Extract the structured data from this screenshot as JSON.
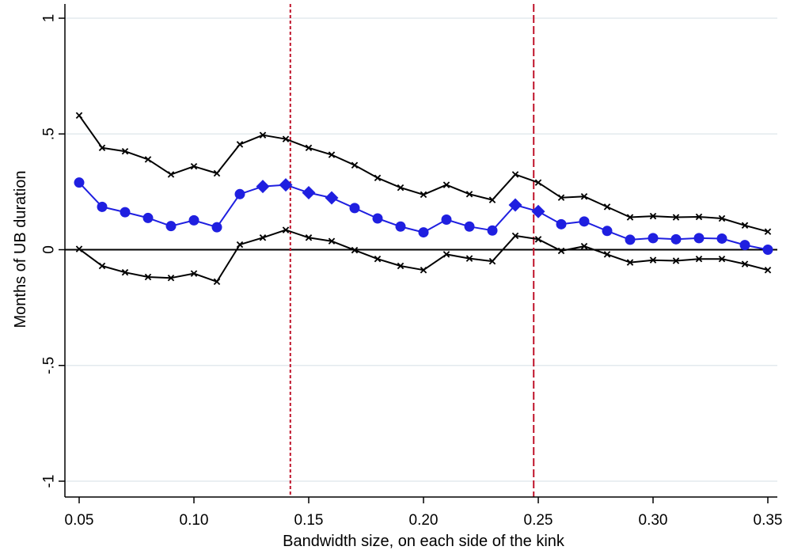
{
  "chart_data": {
    "type": "line",
    "title": "",
    "xlabel": "Bandwidth size, on each side of the kink",
    "ylabel": "Months of UB duration",
    "xlim": [
      0.05,
      0.35
    ],
    "ylim": [
      -1,
      1
    ],
    "x_ticks": [
      0.05,
      0.1,
      0.15,
      0.2,
      0.25,
      0.3,
      0.35
    ],
    "x_tick_labels": [
      "0.05",
      "0.10",
      "0.15",
      "0.20",
      "0.25",
      "0.30",
      "0.35"
    ],
    "y_ticks": [
      -1,
      -0.5,
      0,
      0.5,
      1
    ],
    "y_tick_labels": [
      "-1",
      "-.5",
      "0",
      ".5",
      "1"
    ],
    "grid": "horizontal",
    "reference_lines": {
      "horizontal": [
        {
          "y": 0,
          "color": "#000000"
        }
      ],
      "vertical": [
        {
          "x": 0.142,
          "color": "#c0142b",
          "style": "dotted"
        },
        {
          "x": 0.248,
          "color": "#c0142b",
          "style": "dashed"
        }
      ]
    },
    "x": [
      0.05,
      0.06,
      0.07,
      0.08,
      0.09,
      0.1,
      0.11,
      0.12,
      0.13,
      0.14,
      0.15,
      0.16,
      0.17,
      0.18,
      0.19,
      0.2,
      0.21,
      0.22,
      0.23,
      0.24,
      0.25,
      0.26,
      0.27,
      0.28,
      0.29,
      0.3,
      0.31,
      0.32,
      0.33,
      0.34,
      0.35
    ],
    "series": [
      {
        "role": "estimate",
        "color": "#1f1fe0",
        "values": [
          0.29,
          0.185,
          0.162,
          0.137,
          0.102,
          0.127,
          0.097,
          0.24,
          0.273,
          0.28,
          0.246,
          0.224,
          0.18,
          0.135,
          0.1,
          0.075,
          0.13,
          0.1,
          0.083,
          0.193,
          0.165,
          0.11,
          0.122,
          0.081,
          0.043,
          0.05,
          0.045,
          0.05,
          0.048,
          0.02,
          0.0
        ],
        "marker_types": [
          "circle",
          "circle",
          "circle",
          "circle",
          "circle",
          "circle",
          "circle",
          "circle",
          "diamond",
          "diamond",
          "diamond",
          "diamond",
          "circle",
          "circle",
          "circle",
          "circle",
          "circle",
          "circle",
          "circle",
          "diamond",
          "diamond",
          "circle",
          "circle",
          "circle",
          "circle",
          "circle",
          "circle",
          "circle",
          "circle",
          "circle",
          "circle"
        ]
      },
      {
        "role": "upper-ci",
        "color": "#000000",
        "marker": "x",
        "values": [
          0.58,
          0.44,
          0.425,
          0.39,
          0.325,
          0.36,
          0.33,
          0.455,
          0.495,
          0.478,
          0.44,
          0.41,
          0.365,
          0.31,
          0.268,
          0.238,
          0.28,
          0.24,
          0.215,
          0.325,
          0.29,
          0.225,
          0.23,
          0.185,
          0.14,
          0.145,
          0.14,
          0.142,
          0.135,
          0.105,
          0.078
        ]
      },
      {
        "role": "lower-ci",
        "color": "#000000",
        "marker": "x",
        "values": [
          0.003,
          -0.07,
          -0.098,
          -0.118,
          -0.122,
          -0.103,
          -0.138,
          0.022,
          0.052,
          0.085,
          0.052,
          0.037,
          -0.002,
          -0.04,
          -0.07,
          -0.088,
          -0.02,
          -0.038,
          -0.05,
          0.06,
          0.045,
          -0.005,
          0.015,
          -0.02,
          -0.055,
          -0.045,
          -0.048,
          -0.04,
          -0.04,
          -0.062,
          -0.088
        ]
      }
    ]
  }
}
